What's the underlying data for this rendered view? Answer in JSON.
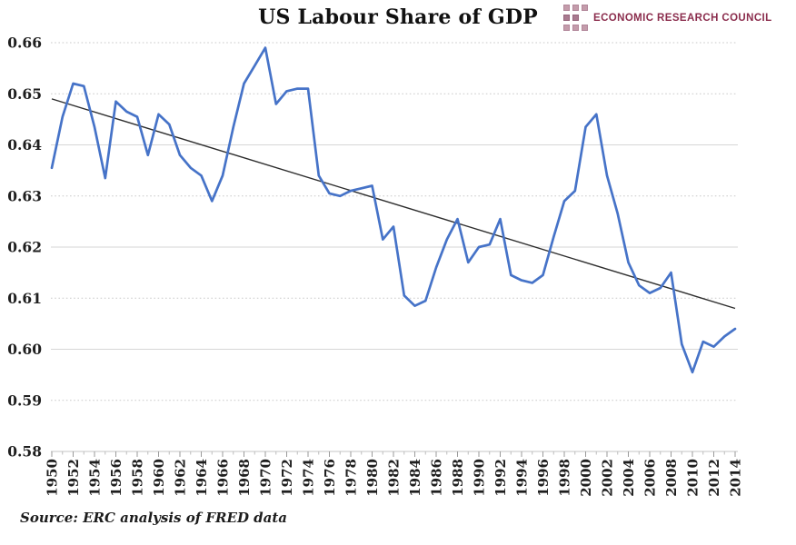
{
  "header": {
    "title": "US Labour Share of GDP",
    "logo": {
      "text": "ECONOMIC RESEARCH COUNCIL",
      "brand_color": "#8b2d4d"
    }
  },
  "footer": {
    "source_note": "Source: ERC analysis of FRED data"
  },
  "chart_data": {
    "type": "line",
    "title": "US Labour Share of GDP",
    "xlabel": "",
    "ylabel": "",
    "ylim": [
      0.58,
      0.66
    ],
    "ytick_step": 0.01,
    "ytick_labels": [
      "0.58",
      "0.59",
      "0.60",
      "0.61",
      "0.62",
      "0.63",
      "0.64",
      "0.65",
      "0.66"
    ],
    "xtick_labels": [
      "1950",
      "1952",
      "1954",
      "1956",
      "1958",
      "1960",
      "1962",
      "1964",
      "1966",
      "1968",
      "1970",
      "1972",
      "1974",
      "1976",
      "1978",
      "1980",
      "1982",
      "1984",
      "1986",
      "1988",
      "1990",
      "1992",
      "1994",
      "1996",
      "1998",
      "2000",
      "2002",
      "2004",
      "2006",
      "2008",
      "2010",
      "2012",
      "2014"
    ],
    "grid": "horizontal",
    "legend_position": "none",
    "series": [
      {
        "name": "US labour share of GDP",
        "color": "#4673c8",
        "years": [
          1950,
          1951,
          1952,
          1953,
          1954,
          1955,
          1956,
          1957,
          1958,
          1959,
          1960,
          1961,
          1962,
          1963,
          1964,
          1965,
          1966,
          1967,
          1968,
          1969,
          1970,
          1971,
          1972,
          1973,
          1974,
          1975,
          1976,
          1977,
          1978,
          1979,
          1980,
          1981,
          1982,
          1983,
          1984,
          1985,
          1986,
          1987,
          1988,
          1989,
          1990,
          1991,
          1992,
          1993,
          1994,
          1995,
          1996,
          1997,
          1998,
          1999,
          2000,
          2001,
          2002,
          2003,
          2004,
          2005,
          2006,
          2007,
          2008,
          2009,
          2010,
          2011,
          2012,
          2013,
          2014
        ],
        "values": [
          0.6355,
          0.6455,
          0.652,
          0.6515,
          0.6435,
          0.6335,
          0.6485,
          0.6465,
          0.6455,
          0.638,
          0.646,
          0.644,
          0.638,
          0.6355,
          0.634,
          0.629,
          0.634,
          0.6435,
          0.652,
          0.6555,
          0.659,
          0.648,
          0.6505,
          0.651,
          0.651,
          0.634,
          0.6305,
          0.63,
          0.631,
          0.6315,
          0.632,
          0.6215,
          0.624,
          0.6105,
          0.6085,
          0.6095,
          0.616,
          0.6215,
          0.6255,
          0.617,
          0.62,
          0.6205,
          0.6255,
          0.6145,
          0.6135,
          0.613,
          0.6145,
          0.622,
          0.629,
          0.631,
          0.6435,
          0.646,
          0.634,
          0.6265,
          0.617,
          0.6125,
          0.611,
          0.612,
          0.615,
          0.601,
          0.5955,
          0.6015,
          0.6005,
          0.6025,
          0.604
        ]
      }
    ],
    "trendline": {
      "name": "linear trend",
      "color": "#2e2e2e",
      "start": {
        "year": 1950,
        "value": 0.649
      },
      "end": {
        "year": 2014,
        "value": 0.608
      }
    }
  }
}
